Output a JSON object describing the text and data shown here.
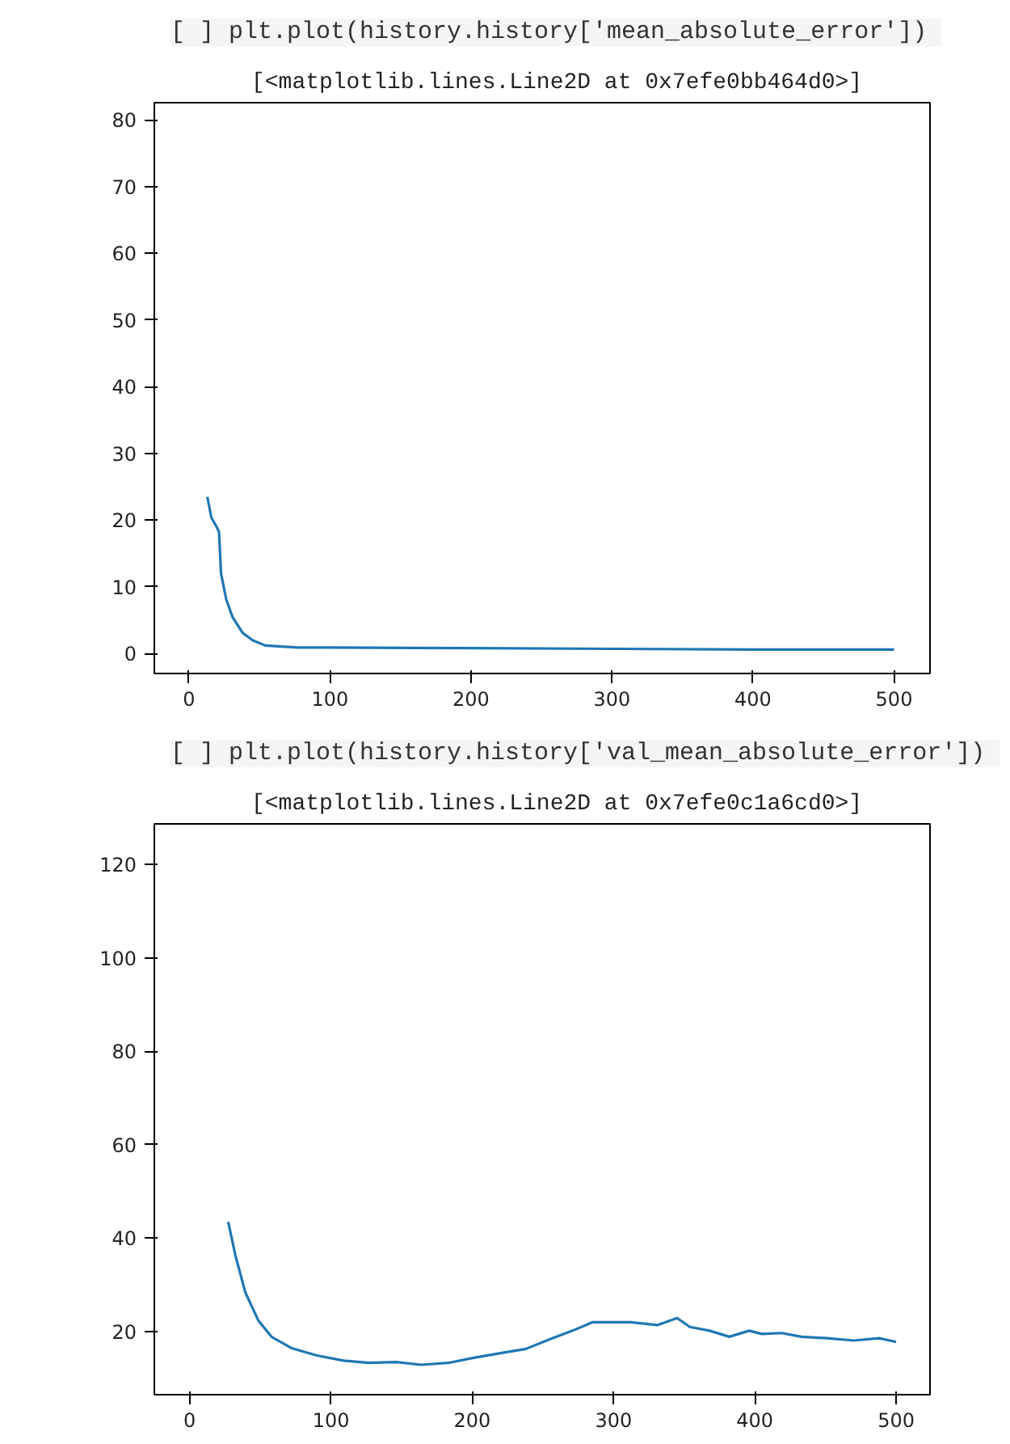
{
  "chart_data": [
    {
      "type": "line",
      "title": "plt.plot(history.history['mean_absolute_error'])",
      "subtitle": "[<matplotlib.lines.Line2D at 0x7efe0bb464d0>]",
      "annotations": [
        "[ ]"
      ],
      "color": "#1f77b4",
      "grid": false,
      "x": [
        13,
        15.8,
        19.5,
        21.3,
        22.7,
        26.4,
        31,
        38,
        45,
        54,
        77,
        100,
        200,
        300,
        400,
        500
      ],
      "values": [
        23.5,
        20.4,
        19,
        18.2,
        12,
        8.1,
        5.4,
        3.1,
        2,
        1.2,
        0.9,
        0.9,
        0.8,
        0.7,
        0.6,
        0.6
      ],
      "xlim": [
        -24.6,
        525.5
      ],
      "ylim": [
        -3,
        82.6
      ],
      "xticks": [
        0,
        100,
        200,
        300,
        400,
        500
      ],
      "yticks": [
        0,
        10,
        20,
        30,
        40,
        50,
        60,
        70,
        80
      ]
    },
    {
      "type": "line",
      "title": "plt.plot(history.history['val_mean_absolute_error'])",
      "subtitle": "[<matplotlib.lines.Line2D at 0x7efe0c1a6cd0>]",
      "annotations": [
        "[ ]"
      ],
      "color": "#1f77b4",
      "grid": false,
      "x": [
        27.3,
        32.4,
        39.4,
        48.6,
        57.9,
        71.8,
        90,
        109,
        127,
        146,
        164,
        183,
        201,
        220,
        238,
        257,
        271,
        285,
        299,
        312,
        331,
        345,
        354,
        368,
        382,
        396,
        405,
        419,
        433,
        451,
        470,
        488,
        500
      ],
      "values": [
        43.5,
        36.3,
        28.4,
        22.4,
        18.9,
        16.5,
        14.9,
        13.8,
        13.3,
        13.5,
        12.9,
        13.3,
        14.4,
        15.4,
        16.3,
        18.6,
        20.2,
        22,
        22,
        22,
        21.4,
        22.9,
        21,
        20.2,
        18.9,
        20.2,
        19.5,
        19.7,
        18.9,
        18.6,
        18.1,
        18.6,
        17.8
      ],
      "xlim": [
        -25,
        524
      ],
      "ylim": [
        6.5,
        128.7
      ],
      "xticks": [
        0,
        100,
        200,
        300,
        400,
        500
      ],
      "yticks": [
        20,
        40,
        60,
        80,
        100,
        120
      ]
    }
  ]
}
